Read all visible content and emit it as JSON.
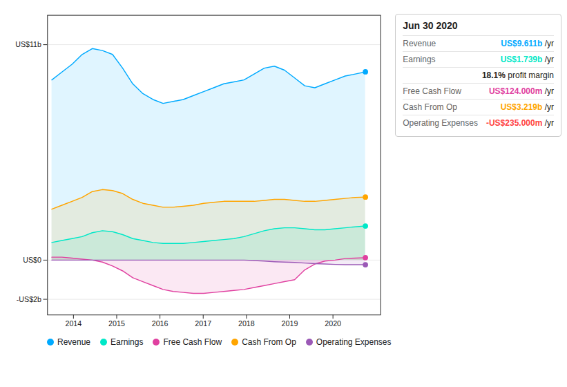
{
  "chart_data": {
    "type": "area",
    "x": [
      2013.5,
      2013.733871,
      2013.967742,
      2014.201613,
      2014.435484,
      2014.669355,
      2014.903226,
      2015.137097,
      2015.370968,
      2015.604839,
      2015.83871,
      2016.072581,
      2016.306452,
      2016.540323,
      2016.774194,
      2017.008065,
      2017.241935,
      2017.475806,
      2017.709677,
      2017.943548,
      2018.177419,
      2018.41129,
      2018.645161,
      2018.879032,
      2019.112903,
      2019.346774,
      2019.580645,
      2019.814516,
      2020.048387,
      2020.282258,
      2020.516129,
      2020.75
    ],
    "xlim": [
      2013.4,
      2021.1
    ],
    "xticks": [
      2014,
      2015,
      2016,
      2017,
      2018,
      2019,
      2020
    ],
    "ylim": [
      -2.8,
      12.5
    ],
    "yticks": [
      {
        "value": 11,
        "label": "US$11b"
      },
      {
        "value": 0,
        "label": "US$0"
      },
      {
        "value": -2,
        "label": "-US$2b"
      }
    ],
    "grid": true,
    "legend": "bottom",
    "series": [
      {
        "name": "Revenue",
        "color": "#00aaff",
        "values": [
          9.2,
          9.6,
          10.0,
          10.5,
          10.8,
          10.7,
          10.5,
          9.8,
          9.0,
          8.5,
          8.2,
          8.0,
          8.1,
          8.2,
          8.4,
          8.6,
          8.8,
          9.0,
          9.1,
          9.2,
          9.5,
          9.8,
          9.9,
          9.7,
          9.3,
          8.9,
          8.8,
          9.0,
          9.2,
          9.4,
          9.5,
          9.611
        ]
      },
      {
        "name": "Earnings",
        "color": "#00e8c8",
        "values": [
          0.9,
          1.0,
          1.1,
          1.2,
          1.4,
          1.5,
          1.45,
          1.3,
          1.1,
          1.0,
          0.9,
          0.85,
          0.85,
          0.85,
          0.9,
          0.95,
          1.0,
          1.05,
          1.1,
          1.2,
          1.35,
          1.5,
          1.6,
          1.65,
          1.65,
          1.6,
          1.55,
          1.55,
          1.6,
          1.65,
          1.7,
          1.739
        ]
      },
      {
        "name": "Free Cash Flow",
        "color": "#e040a0",
        "values": [
          0.15,
          0.15,
          0.1,
          0.05,
          0.0,
          -0.1,
          -0.3,
          -0.55,
          -0.9,
          -1.1,
          -1.3,
          -1.5,
          -1.6,
          -1.65,
          -1.7,
          -1.7,
          -1.65,
          -1.6,
          -1.55,
          -1.5,
          -1.4,
          -1.3,
          -1.2,
          -1.1,
          -1.0,
          -0.5,
          -0.2,
          -0.05,
          0.0,
          0.08,
          0.1,
          0.124
        ]
      },
      {
        "name": "Cash From Op",
        "color": "#ffa500",
        "values": [
          2.6,
          2.8,
          3.0,
          3.2,
          3.5,
          3.6,
          3.55,
          3.4,
          3.1,
          2.9,
          2.8,
          2.7,
          2.7,
          2.75,
          2.8,
          2.9,
          2.95,
          3.0,
          3.0,
          3.0,
          3.0,
          3.05,
          3.1,
          3.1,
          3.05,
          3.0,
          3.0,
          3.05,
          3.1,
          3.15,
          3.2,
          3.219
        ]
      },
      {
        "name": "Operating Expenses",
        "color": "#9b59b6",
        "values": [
          0.0,
          0.0,
          0.0,
          0.0,
          0.0,
          0.0,
          0.0,
          0.0,
          0.0,
          0.0,
          0.0,
          0.0,
          0.0,
          0.0,
          0.0,
          0.0,
          0.0,
          0.0,
          0.0,
          0.0,
          -0.02,
          -0.05,
          -0.08,
          -0.1,
          -0.12,
          -0.15,
          -0.18,
          -0.2,
          -0.22,
          -0.23,
          -0.235,
          -0.235
        ]
      }
    ],
    "annotations": {
      "title": "Jun 30 2020",
      "rows": [
        {
          "label": "Revenue",
          "value": "US$9.611b",
          "suffix": "/yr",
          "color": "#00aaff"
        },
        {
          "label": "Earnings",
          "value": "US$1.739b",
          "suffix": "/yr",
          "color": "#00e8c8"
        },
        {
          "value": "18.1%",
          "suffix": "profit margin"
        },
        {
          "label": "Free Cash Flow",
          "value": "US$124.000m",
          "suffix": "/yr",
          "color": "#e040a0"
        },
        {
          "label": "Cash From Op",
          "value": "US$3.219b",
          "suffix": "/yr",
          "color": "#ffa500"
        },
        {
          "label": "Operating Expenses",
          "value": "-US$235.000m",
          "suffix": "/yr",
          "color": "#ff4444"
        }
      ]
    }
  }
}
